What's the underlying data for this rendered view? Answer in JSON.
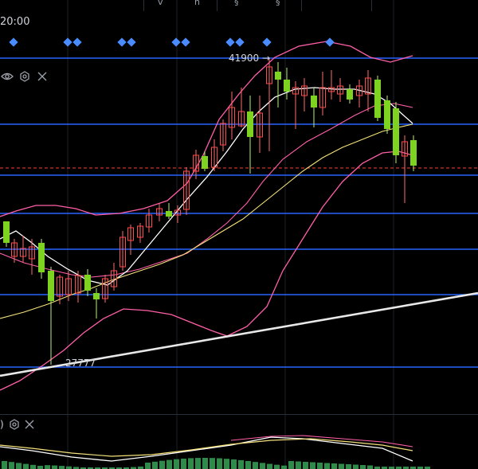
{
  "toolbar": {
    "time_label": "20:00",
    "visible_glyphs": [
      "v",
      "h",
      "§",
      "§"
    ]
  },
  "main_panel": {
    "horizontal_levels": [
      41900,
      40400,
      39700,
      38000,
      35000,
      29000
    ],
    "annotations": {
      "high_label": "41900",
      "low_label": "27777"
    },
    "colors": {
      "background": "#000000",
      "level_line": "#2962ff",
      "up_candle": "#7ed321",
      "down_candle": "#ff4d4d",
      "upper_band": "#ff5fa8",
      "middle_ma": "#ffffff",
      "slow_ma": "#f5e27a",
      "trendline": "#e8e8e8",
      "marker": "#4a8cff",
      "current_price_dash": "#ff3b30"
    },
    "marker_count": 11
  },
  "sub_panel": {
    "label_fragment": ")",
    "colors": {
      "hist": "#2e8b4a",
      "hist_neg": "#b33b3b",
      "fast": "#ffffff",
      "slow": "#f5e27a",
      "signal": "#ff5fa8"
    }
  }
}
